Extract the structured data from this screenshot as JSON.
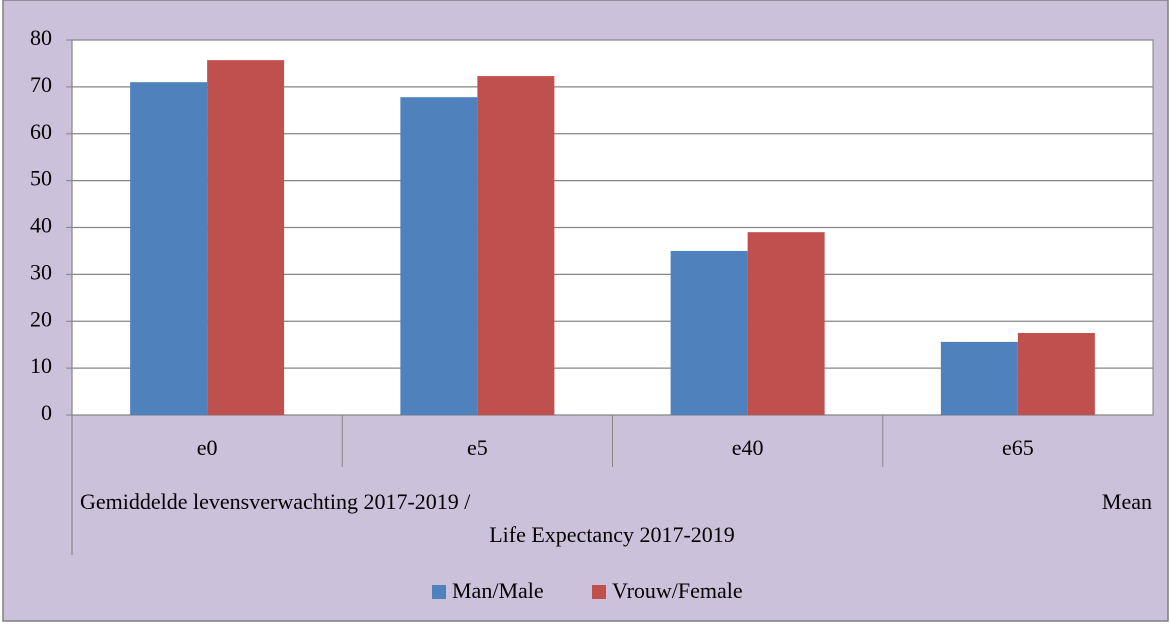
{
  "chart_data": {
    "type": "bar",
    "categories": [
      "e0",
      "e5",
      "e40",
      "e65"
    ],
    "group_label_lines": [
      "Gemiddelde levensverwachting 2017-2019 /",
      "Life Expectancy 2017-2019"
    ],
    "group_suffix": "Mean",
    "series": [
      {
        "name": "Man/Male",
        "color": "#4f81bd",
        "values": [
          71.0,
          67.8,
          35.0,
          15.6
        ]
      },
      {
        "name": "Vrouw/Female",
        "color": "#c0504d",
        "values": [
          75.7,
          72.3,
          39.0,
          17.5
        ]
      }
    ],
    "ylim": [
      0,
      80
    ],
    "yticks": [
      0,
      10,
      20,
      30,
      40,
      50,
      60,
      70,
      80
    ],
    "grid": true,
    "legend": "bottom"
  }
}
